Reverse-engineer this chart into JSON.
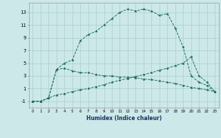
{
  "xlabel": "Humidex (Indice chaleur)",
  "background_color": "#cce8e8",
  "grid_color": "#aacccc",
  "line_color": "#1a6b5a",
  "xlim": [
    -0.5,
    23.5
  ],
  "ylim": [
    -2.0,
    14.5
  ],
  "xticks": [
    0,
    1,
    2,
    3,
    4,
    5,
    6,
    7,
    8,
    9,
    10,
    11,
    12,
    13,
    14,
    15,
    16,
    17,
    18,
    19,
    20,
    21,
    22,
    23
  ],
  "yticks": [
    -1,
    1,
    3,
    5,
    7,
    9,
    11,
    13
  ],
  "curve1_x": [
    0,
    1,
    2,
    3,
    4,
    5,
    6,
    7,
    8,
    9,
    10,
    11,
    12,
    13,
    14,
    15,
    16,
    17,
    18,
    19,
    20,
    21,
    22,
    23
  ],
  "curve1_y": [
    -1,
    -1,
    -0.5,
    4,
    5,
    5.5,
    8.5,
    9.5,
    10,
    11,
    12,
    13,
    13.5,
    13.2,
    13.5,
    13.2,
    12.5,
    12.8,
    10.5,
    7.5,
    3,
    2,
    1.5,
    0.5
  ],
  "curve2_x": [
    0,
    1,
    2,
    3,
    4,
    5,
    6,
    7,
    8,
    9,
    10,
    11,
    12,
    13,
    14,
    15,
    16,
    17,
    18,
    19,
    20,
    21,
    22,
    23
  ],
  "curve2_y": [
    -1,
    -1,
    -0.5,
    4,
    4.2,
    3.8,
    3.5,
    3.5,
    3.2,
    3.0,
    3.0,
    2.8,
    2.8,
    2.7,
    2.5,
    2.4,
    2.2,
    2.0,
    1.8,
    1.5,
    1.2,
    1.0,
    0.8,
    0.5
  ],
  "curve3_x": [
    0,
    1,
    2,
    3,
    4,
    5,
    6,
    7,
    8,
    9,
    10,
    11,
    12,
    13,
    14,
    15,
    16,
    17,
    18,
    19,
    20,
    21,
    22,
    23
  ],
  "curve3_y": [
    -1,
    -1,
    -0.5,
    0.0,
    0.2,
    0.5,
    0.8,
    1.0,
    1.3,
    1.6,
    2.0,
    2.3,
    2.6,
    2.9,
    3.2,
    3.5,
    3.9,
    4.2,
    4.6,
    5.0,
    6.0,
    3.0,
    2.0,
    0.5
  ]
}
